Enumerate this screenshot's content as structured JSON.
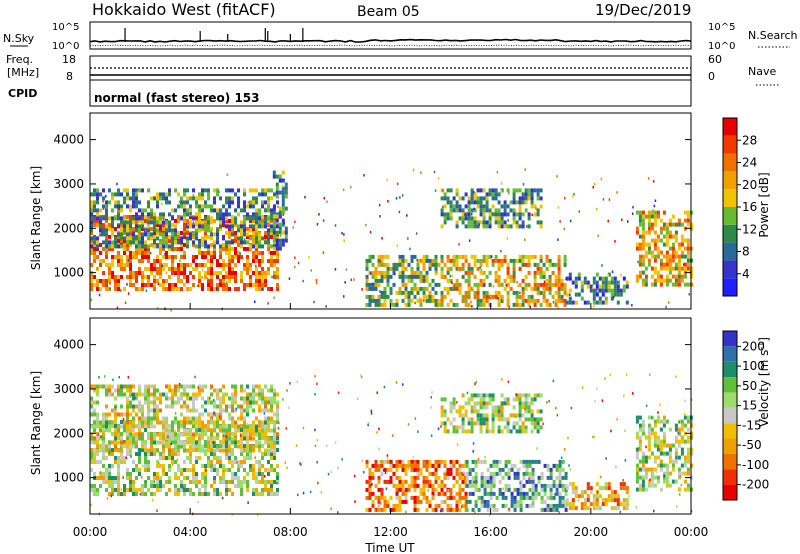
{
  "header": {
    "title": "Hokkaido West (fitACF)",
    "beam": "Beam 05",
    "date": "19/Dec/2019"
  },
  "noise": {
    "left_label": "N.Sky",
    "right_label": "N.Search",
    "tick_top": "10^5",
    "tick_bottom": "10^0"
  },
  "freq": {
    "left_label_1": "Freq.",
    "left_label_2": "[MHz]",
    "cpid_label": "CPID",
    "tick_top": "18",
    "tick_bottom": "8",
    "right_label": "Nave",
    "right_tick_top": "60",
    "right_tick_bottom": "0"
  },
  "mode_text": "normal (fast stereo) 153",
  "colors": {
    "power": [
      "#1f1fff",
      "#3434c8",
      "#2a6a9a",
      "#2f8a4a",
      "#66bb33",
      "#f0c400",
      "#f0a000",
      "#f07000",
      "#f03a00",
      "#e60000"
    ],
    "velocity": [
      "#3333cc",
      "#2f6faa",
      "#1c8f6a",
      "#5fbf3a",
      "#9ddc6a",
      "#c8c8c8",
      "#f0c000",
      "#f0a000",
      "#f07000",
      "#f03000",
      "#e60000"
    ]
  },
  "chart_data": [
    {
      "type": "heatmap",
      "name": "power",
      "ylabel": "Slant Range [km]",
      "ylim": [
        180,
        4600
      ],
      "xlim": [
        "00:00",
        "24:00"
      ],
      "yticks": [
        1000,
        2000,
        3000,
        4000
      ],
      "colorbar": {
        "label": "Power [dB]",
        "range": [
          0,
          32
        ],
        "ticks": [
          4,
          8,
          12,
          16,
          20,
          24,
          28
        ]
      },
      "regions": [
        {
          "t0": 0.0,
          "t1": 7.5,
          "r0": 600,
          "r1": 2300,
          "level": 0.75
        },
        {
          "t0": 0.0,
          "t1": 7.5,
          "r0": 1600,
          "r1": 2900,
          "level": 0.35
        },
        {
          "t0": 7.3,
          "t1": 7.8,
          "r0": 1500,
          "r1": 3300,
          "level": 0.3
        },
        {
          "t0": 11.0,
          "t1": 14.0,
          "r0": 300,
          "r1": 1400,
          "level": 0.45
        },
        {
          "t0": 14.0,
          "t1": 19.0,
          "r0": 300,
          "r1": 1400,
          "level": 0.6
        },
        {
          "t0": 14.0,
          "t1": 18.0,
          "r0": 2000,
          "r1": 2900,
          "level": 0.35
        },
        {
          "t0": 19.0,
          "t1": 21.5,
          "r0": 300,
          "r1": 1000,
          "level": 0.3
        },
        {
          "t0": 21.8,
          "t1": 24.0,
          "r0": 700,
          "r1": 2400,
          "level": 0.6
        }
      ]
    },
    {
      "type": "heatmap",
      "name": "velocity",
      "ylabel": "Slant Range [km]",
      "xlabel": "Time UT",
      "ylim": [
        180,
        4600
      ],
      "xlim": [
        "00:00",
        "24:00"
      ],
      "yticks": [
        1000,
        2000,
        3000,
        4000
      ],
      "xticks": [
        "00:00",
        "04:00",
        "08:00",
        "12:00",
        "16:00",
        "20:00",
        "00:00"
      ],
      "colorbar": {
        "label": "Velocity [m s^-1]",
        "ticks": [
          "200",
          "100",
          "50",
          "15",
          "-15",
          "-50",
          "-100",
          "-200"
        ]
      },
      "regions": [
        {
          "t0": 0.0,
          "t1": 7.5,
          "r0": 600,
          "r1": 2300,
          "level": 0.45
        },
        {
          "t0": 0.0,
          "t1": 7.5,
          "r0": 1600,
          "r1": 3100,
          "level": 0.5
        },
        {
          "t0": 11.0,
          "t1": 15.0,
          "r0": 300,
          "r1": 1400,
          "level": 0.75
        },
        {
          "t0": 15.0,
          "t1": 19.0,
          "r0": 300,
          "r1": 1400,
          "level": 0.3
        },
        {
          "t0": 14.0,
          "t1": 18.0,
          "r0": 2000,
          "r1": 2900,
          "level": 0.45
        },
        {
          "t0": 19.0,
          "t1": 21.5,
          "r0": 300,
          "r1": 900,
          "level": 0.65
        },
        {
          "t0": 21.8,
          "t1": 24.0,
          "r0": 700,
          "r1": 2400,
          "level": 0.45
        }
      ]
    }
  ]
}
